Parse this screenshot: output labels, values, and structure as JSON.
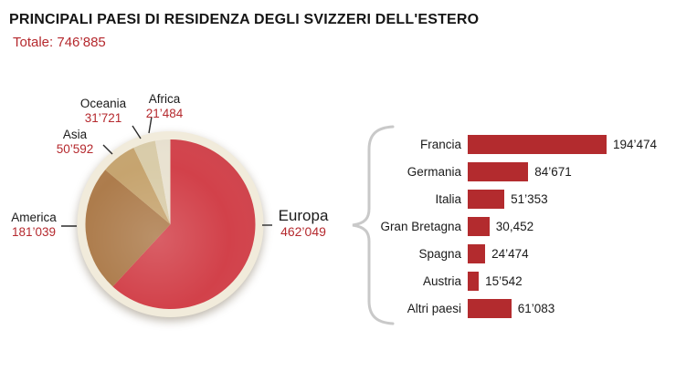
{
  "header": {
    "title": "PRINCIPALI PAESI DI RESIDENZA DEGLI SVIZZERI DELL'ESTERO",
    "subtitle": "Totale: 746’885"
  },
  "accents": {
    "red_text": "#b5292e",
    "bar_red": "#b32b2e",
    "pie_red": "#d2414a",
    "plate_cream": "#f1ebdb",
    "brace_gray": "#c9c9c9",
    "text_dark": "#1a1a1a"
  },
  "chart_data": [
    {
      "type": "pie",
      "start_angle": 0,
      "direction": "clockwise",
      "total": 746885,
      "plate_color": "#f1ebdb",
      "segments": [
        {
          "id": "europa",
          "label": "Europa",
          "value": 462049,
          "display": "462’049",
          "color": "#d2414a"
        },
        {
          "id": "america",
          "label": "America",
          "value": 181039,
          "display": "181’039",
          "color": "#ad7c4c"
        },
        {
          "id": "asia",
          "label": "Asia",
          "value": 50592,
          "display": "50’592",
          "color": "#c6a46f"
        },
        {
          "id": "oceania",
          "label": "Oceania",
          "value": 31721,
          "display": "31’721",
          "color": "#d9cca9"
        },
        {
          "id": "africa",
          "label": "Africa",
          "value": 21484,
          "display": "21’484",
          "color": "#e9e2d1"
        }
      ]
    },
    {
      "type": "bar",
      "orientation": "horizontal",
      "linked_segment": "Europa",
      "bar_color": "#b32b2e",
      "rows": [
        {
          "label": "Francia",
          "value": 194474,
          "display": "194’474"
        },
        {
          "label": "Germania",
          "value": 84671,
          "display": "84’671"
        },
        {
          "label": "Italia",
          "value": 51353,
          "display": "51’353"
        },
        {
          "label": "Gran Bretagna",
          "value": 30452,
          "display": "30,452"
        },
        {
          "label": "Spagna",
          "value": 24474,
          "display": "24’474"
        },
        {
          "label": "Austria",
          "value": 15542,
          "display": "15’542"
        },
        {
          "label": "Altri paesi",
          "value": 61083,
          "display": "61’083"
        }
      ]
    }
  ]
}
